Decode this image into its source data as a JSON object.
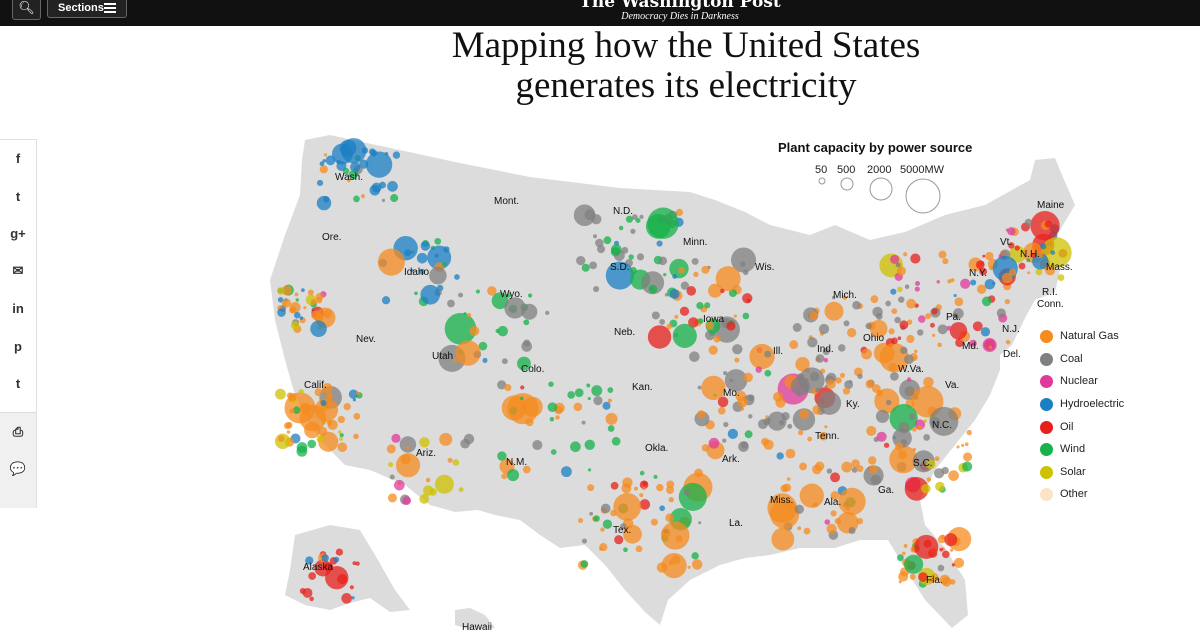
{
  "header": {
    "search_icon": "search-icon",
    "sections_label": "Sections",
    "logo_text": "The Washington Post",
    "tagline": "Democracy Dies in Darkness"
  },
  "title": "Mapping how the United States generates its electricity",
  "share": [
    {
      "icon": "facebook-icon",
      "glyph": "f"
    },
    {
      "icon": "twitter-icon",
      "glyph": "t"
    },
    {
      "icon": "google-plus-icon",
      "glyph": "g+"
    },
    {
      "icon": "email-icon",
      "glyph": "✉"
    },
    {
      "icon": "linkedin-icon",
      "glyph": "in"
    },
    {
      "icon": "pinterest-icon",
      "glyph": "p"
    },
    {
      "icon": "tumblr-icon",
      "glyph": "t"
    }
  ],
  "utility": [
    {
      "icon": "print-icon",
      "glyph": "⎙"
    },
    {
      "icon": "comment-icon",
      "glyph": "💬"
    }
  ],
  "legend": {
    "title": "Plant capacity by power source",
    "sizes": [
      "50",
      "500",
      "2000",
      "5000MW"
    ],
    "sources": [
      {
        "label": "Natural Gas",
        "color": "#f68b1f"
      },
      {
        "label": "Coal",
        "color": "#808080"
      },
      {
        "label": "Nuclear",
        "color": "#e0399a"
      },
      {
        "label": "Hydroelectric",
        "color": "#1b7fc4"
      },
      {
        "label": "Oil",
        "color": "#e8201b"
      },
      {
        "label": "Wind",
        "color": "#17b24a"
      },
      {
        "label": "Solar",
        "color": "#cfc200"
      },
      {
        "label": "Other",
        "color": "#fbe3c6"
      }
    ]
  },
  "states": [
    "Wash.",
    "Mont.",
    "N.D.",
    "Minn.",
    "Maine",
    "Ore.",
    "Idaho",
    "S.D.",
    "Wis.",
    "Vt.",
    "N.H.",
    "Mass.",
    "N.Y.",
    "R.I.",
    "Conn.",
    "Wyo.",
    "Mich.",
    "Iowa",
    "Neb.",
    "Pa.",
    "N.J.",
    "Nev.",
    "Utah",
    "Ill.",
    "Ind.",
    "Ohio",
    "Md.",
    "Del.",
    "Colo.",
    "W.Va.",
    "Calif.",
    "Kan.",
    "Mo.",
    "Va.",
    "Ky.",
    "N.C.",
    "Tenn.",
    "Okla.",
    "Ariz.",
    "N.M.",
    "Ark.",
    "S.C.",
    "Miss.",
    "Ala.",
    "Ga.",
    "Tex.",
    "La.",
    "Fla.",
    "Alaska",
    "Hawaii"
  ]
}
